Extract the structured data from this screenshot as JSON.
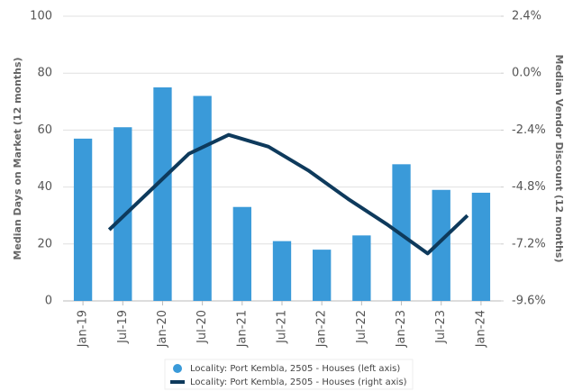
{
  "chart_data": {
    "type": "bar-line",
    "categories": [
      "Jan-19",
      "Jul-19",
      "Jan-20",
      "Jul-20",
      "Jan-21",
      "Jul-21",
      "Jan-22",
      "Jul-22",
      "Jan-23",
      "Jul-23",
      "Jan-24"
    ],
    "y_label": "Median Days on Market (12 months)",
    "y2_label": "Median Vendor Discount (12 months)",
    "series": [
      {
        "name": "Locality: Port Kembla, 2505 - Houses (left axis)",
        "type": "bar",
        "color": "#3a9ad9",
        "values": [
          57,
          61,
          75,
          72,
          33,
          21,
          18,
          23,
          48,
          39,
          38
        ]
      },
      {
        "name": "Locality: Port Kembla, 2505 - Houses (right axis)",
        "type": "line",
        "axis": "y2",
        "color": "#0e3a5c",
        "values": [
          null,
          -6.6,
          -5.0,
          -3.4,
          -2.6,
          -3.1,
          -4.1,
          -5.3,
          -6.4,
          -7.6,
          -6.0
        ]
      }
    ],
    "ylim": [
      0,
      100
    ],
    "yticks": [
      0,
      20,
      40,
      60,
      80,
      100
    ],
    "y2lim": [
      -9.6,
      2.4
    ],
    "y2ticks": [
      {
        "value": -9.6,
        "label": "-9.6%"
      },
      {
        "value": -7.2,
        "label": "-7.2%"
      },
      {
        "value": -4.8,
        "label": "-4.8%"
      },
      {
        "value": -2.4,
        "label": "-2.4%"
      },
      {
        "value": 0,
        "label": "0.0%"
      },
      {
        "value": 2.4,
        "label": "2.4%"
      }
    ],
    "grid": true,
    "legend": "bottom"
  }
}
